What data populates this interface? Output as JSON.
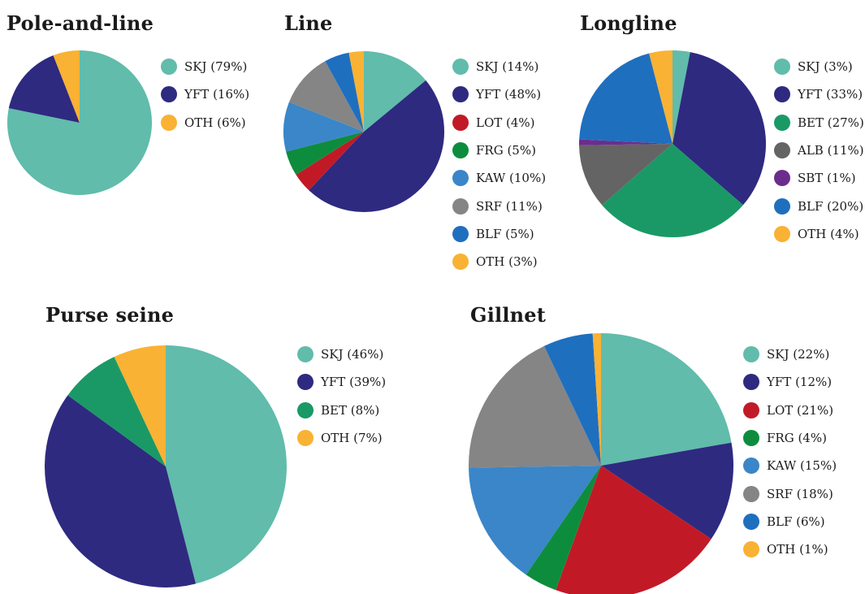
{
  "colors": {
    "SKJ": "#61bcab",
    "YFT": "#2e2a80",
    "LOT": "#c11a26",
    "FRG": "#0e8c3e",
    "KAW": "#3a86c8",
    "SRF": "#858585",
    "BLF": "#1f6fbf",
    "OTH": "#f9b233",
    "BET": "#1a9966",
    "ALB": "#646464",
    "SBT": "#6b2d8c"
  },
  "chart_data": [
    {
      "type": "pie",
      "title": "Pole-and-line",
      "categories": [
        "SKJ",
        "YFT",
        "OTH"
      ],
      "values": [
        79,
        16,
        6
      ],
      "labels": [
        "SKJ (79%)",
        "YFT (16%)",
        "OTH (6%)"
      ]
    },
    {
      "type": "pie",
      "title": "Line",
      "categories": [
        "SKJ",
        "YFT",
        "LOT",
        "FRG",
        "KAW",
        "SRF",
        "BLF",
        "OTH"
      ],
      "values": [
        14,
        48,
        4,
        5,
        10,
        11,
        5,
        3
      ],
      "labels": [
        "SKJ (14%)",
        "YFT (48%)",
        "LOT (4%)",
        "FRG (5%)",
        "KAW (10%)",
        "SRF (11%)",
        "BLF (5%)",
        "OTH (3%)"
      ]
    },
    {
      "type": "pie",
      "title": "Longline",
      "categories": [
        "SKJ",
        "YFT",
        "BET",
        "ALB",
        "SBT",
        "BLF",
        "OTH"
      ],
      "values": [
        3,
        33,
        27,
        11,
        1,
        20,
        4
      ],
      "labels": [
        "SKJ (3%)",
        "YFT (33%)",
        "BET (27%)",
        "ALB (11%)",
        "SBT (1%)",
        "BLF (20%)",
        "OTH (4%)"
      ]
    },
    {
      "type": "pie",
      "title": "Purse seine",
      "categories": [
        "SKJ",
        "YFT",
        "BET",
        "OTH"
      ],
      "values": [
        46,
        39,
        8,
        7
      ],
      "labels": [
        "SKJ (46%)",
        "YFT (39%)",
        "BET (8%)",
        "OTH (7%)"
      ]
    },
    {
      "type": "pie",
      "title": "Gillnet",
      "categories": [
        "SKJ",
        "YFT",
        "LOT",
        "FRG",
        "KAW",
        "SRF",
        "BLF",
        "OTH"
      ],
      "values": [
        22,
        12,
        21,
        4,
        15,
        18,
        6,
        1
      ],
      "labels": [
        "SKJ (22%)",
        "YFT (12%)",
        "LOT (21%)",
        "FRG (4%)",
        "KAW (15%)",
        "SRF (18%)",
        "BLF (6%)",
        "OTH (1%)"
      ]
    }
  ]
}
